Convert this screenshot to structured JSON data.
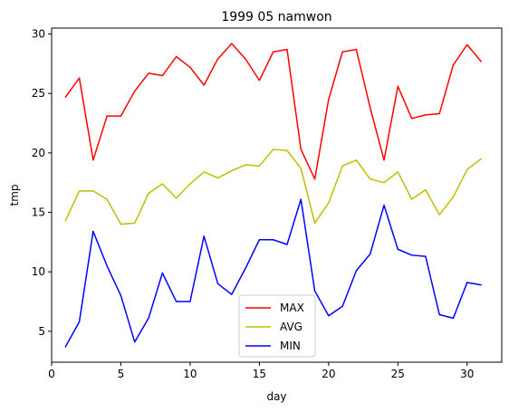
{
  "chart_data": {
    "type": "line",
    "title": "1999 05 namwon",
    "xlabel": "day",
    "ylabel": "tmp",
    "xlim": [
      0.0,
      32.5
    ],
    "ylim": [
      2.4,
      30.5
    ],
    "xticks": [
      0,
      5,
      10,
      15,
      20,
      25,
      30
    ],
    "yticks": [
      5,
      10,
      15,
      20,
      25,
      30
    ],
    "grid": false,
    "legend_position": "lower-center",
    "x": [
      1,
      2,
      3,
      4,
      5,
      6,
      7,
      8,
      9,
      10,
      11,
      12,
      13,
      14,
      15,
      16,
      17,
      18,
      19,
      20,
      21,
      22,
      23,
      24,
      25,
      26,
      27,
      28,
      29,
      30,
      31
    ],
    "series": [
      {
        "name": "MAX",
        "color": "#ff0000",
        "values": [
          24.7,
          26.3,
          19.4,
          23.1,
          23.1,
          25.2,
          26.7,
          26.5,
          28.1,
          27.2,
          25.7,
          27.9,
          29.2,
          27.9,
          26.1,
          28.5,
          28.7,
          20.3,
          17.8,
          24.5,
          28.5,
          28.7,
          23.8,
          19.4,
          25.6,
          22.9,
          23.2,
          23.3,
          27.4,
          29.1,
          27.7
        ]
      },
      {
        "name": "AVG",
        "color": "#bfbf00",
        "values": [
          14.3,
          16.8,
          16.8,
          16.1,
          14.0,
          14.1,
          16.6,
          17.4,
          16.2,
          17.4,
          18.4,
          17.9,
          18.5,
          19.0,
          18.9,
          20.3,
          20.2,
          18.7,
          14.1,
          15.8,
          18.9,
          19.4,
          17.8,
          17.5,
          18.4,
          16.1,
          16.9,
          14.8,
          16.3,
          18.6,
          19.5
        ]
      },
      {
        "name": "MIN",
        "color": "#0000ff",
        "values": [
          3.7,
          5.8,
          13.4,
          10.5,
          8.0,
          4.1,
          6.1,
          9.9,
          7.5,
          7.5,
          13.0,
          9.0,
          8.1,
          10.3,
          12.7,
          12.7,
          12.3,
          16.1,
          8.4,
          6.3,
          7.1,
          10.1,
          11.5,
          15.6,
          11.9,
          11.4,
          11.3,
          6.4,
          6.1,
          9.1,
          8.9
        ]
      }
    ]
  }
}
